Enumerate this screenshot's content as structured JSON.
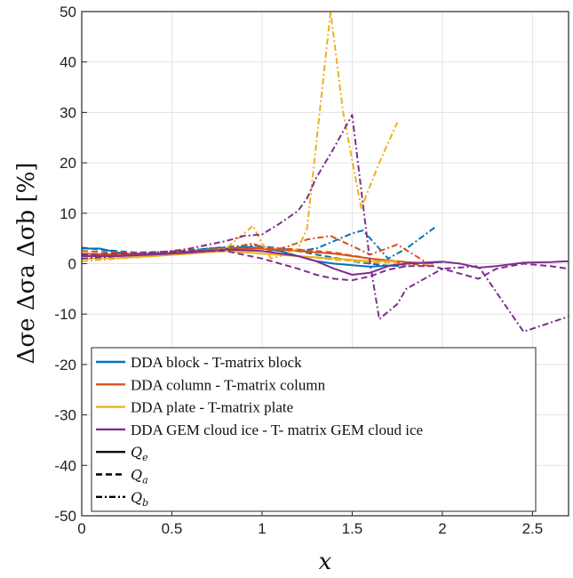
{
  "chart_data": {
    "type": "line",
    "title": "",
    "xlabel": "x",
    "ylabel": "Δσe Δσa Δσb [%]",
    "xlim": [
      0,
      2.7
    ],
    "ylim": [
      -50,
      50
    ],
    "xticks": [
      0,
      0.5,
      1,
      1.5,
      2,
      2.5
    ],
    "xtick_labels": [
      "0",
      "0.5",
      "1",
      "1.5",
      "2",
      "2.5"
    ],
    "yticks": [
      -50,
      -40,
      -30,
      -20,
      -10,
      0,
      10,
      20,
      30,
      40,
      50
    ],
    "ytick_labels": [
      "-50",
      "-40",
      "-30",
      "-20",
      "-10",
      "0",
      "10",
      "20",
      "30",
      "40",
      "50"
    ],
    "grid": true,
    "legend_position": "bottom-left",
    "colors": {
      "block": "#0072BD",
      "column": "#D95319",
      "plate": "#EDB120",
      "gem": "#7E2F8E"
    },
    "legend": {
      "entries": [
        {
          "label": "DDA  block - T-matrix  block",
          "color": "#0072BD",
          "style": "solid"
        },
        {
          "label": "DDA  column - T-matrix  column",
          "color": "#D95319",
          "style": "solid"
        },
        {
          "label": "DDA  plate - T-matrix  plate",
          "color": "#EDB120",
          "style": "solid"
        },
        {
          "label": "DDA GEM  cloud ice - T- matrix GEM cloud ice",
          "color": "#7E2F8E",
          "style": "solid"
        },
        {
          "label": "Q",
          "sub": "e",
          "color": "#000000",
          "style": "solid"
        },
        {
          "label": "Q",
          "sub": "a",
          "color": "#000000",
          "style": "dashed"
        },
        {
          "label": "Q",
          "sub": "b",
          "color": "#000000",
          "style": "dashdot"
        }
      ]
    },
    "series": [
      {
        "shape": "block",
        "quantity": "Q_e",
        "color": "#0072BD",
        "style": "solid",
        "x": [
          0,
          0.1,
          0.2,
          0.3,
          0.4,
          0.5,
          0.6,
          0.7,
          0.8,
          0.9,
          1.0,
          1.1,
          1.2,
          1.3,
          1.4,
          1.5,
          1.6,
          1.7,
          1.8,
          1.9,
          2.0
        ],
        "y": [
          3.0,
          3.0,
          2.2,
          1.8,
          2.0,
          2.1,
          2.4,
          2.8,
          3.0,
          3.2,
          3.0,
          2.5,
          1.5,
          0.5,
          0.0,
          -0.3,
          -0.6,
          -0.4,
          0.0,
          0.2,
          0.3
        ]
      },
      {
        "shape": "block",
        "quantity": "Q_a",
        "color": "#0072BD",
        "style": "dashed",
        "x": [
          0,
          0.1,
          0.2,
          0.3,
          0.4,
          0.5,
          0.6,
          0.7,
          0.8,
          0.9,
          1.0,
          1.1,
          1.2,
          1.3,
          1.4,
          1.5,
          1.6,
          1.7,
          1.8
        ],
        "y": [
          3.2,
          2.8,
          2.5,
          2.2,
          2.3,
          2.4,
          2.6,
          3.0,
          3.2,
          3.3,
          3.3,
          3.0,
          2.5,
          1.8,
          1.2,
          0.5,
          0.0,
          -0.4,
          -0.5
        ]
      },
      {
        "shape": "block",
        "quantity": "Q_b",
        "color": "#0072BD",
        "style": "dashdot",
        "x": [
          0,
          0.1,
          0.2,
          0.3,
          0.4,
          0.5,
          0.6,
          0.7,
          0.8,
          0.9,
          1.0,
          1.1,
          1.2,
          1.3,
          1.4,
          1.5,
          1.56,
          1.7,
          1.8,
          1.97
        ],
        "y": [
          1.5,
          1.6,
          1.8,
          2.0,
          2.2,
          2.5,
          2.7,
          3.0,
          3.3,
          3.6,
          3.5,
          3.0,
          2.5,
          3.0,
          4.5,
          6.0,
          6.6,
          1.0,
          3.0,
          7.5
        ]
      },
      {
        "shape": "column",
        "quantity": "Q_e",
        "color": "#D95319",
        "style": "solid",
        "x": [
          0,
          0.2,
          0.4,
          0.6,
          0.8,
          1.0,
          1.2,
          1.4,
          1.6,
          1.8,
          1.95
        ],
        "y": [
          2.0,
          1.8,
          2.0,
          2.3,
          2.8,
          3.0,
          2.5,
          2.0,
          1.0,
          0.3,
          0.0
        ]
      },
      {
        "shape": "column",
        "quantity": "Q_a",
        "color": "#D95319",
        "style": "dashed",
        "x": [
          0,
          0.2,
          0.4,
          0.6,
          0.8,
          1.0,
          1.2,
          1.4,
          1.6,
          1.8,
          1.95
        ],
        "y": [
          2.5,
          2.2,
          2.3,
          2.6,
          3.0,
          3.2,
          2.8,
          2.2,
          1.0,
          0.0,
          -0.5
        ]
      },
      {
        "shape": "column",
        "quantity": "Q_b",
        "color": "#D95319",
        "style": "dashdot",
        "x": [
          0,
          0.2,
          0.4,
          0.6,
          0.8,
          0.95,
          1.05,
          1.15,
          1.25,
          1.38,
          1.5,
          1.6,
          1.75,
          1.9
        ],
        "y": [
          1.5,
          1.8,
          2.0,
          2.5,
          3.0,
          4.0,
          2.5,
          3.5,
          4.8,
          5.5,
          3.5,
          1.8,
          3.8,
          0.5
        ]
      },
      {
        "shape": "plate",
        "quantity": "Q_e",
        "color": "#EDB120",
        "style": "solid",
        "x": [
          0,
          0.2,
          0.4,
          0.6,
          0.8,
          1.0,
          1.2,
          1.4,
          1.6,
          1.75
        ],
        "y": [
          1.0,
          1.1,
          1.5,
          2.0,
          2.5,
          2.0,
          1.5,
          1.0,
          0.5,
          0.5
        ]
      },
      {
        "shape": "plate",
        "quantity": "Q_a",
        "color": "#EDB120",
        "style": "dashed",
        "x": [
          0,
          0.2,
          0.4,
          0.6,
          0.8,
          1.0,
          1.2,
          1.4,
          1.6,
          1.75
        ],
        "y": [
          1.5,
          1.5,
          1.8,
          2.2,
          2.8,
          2.5,
          1.5,
          0.8,
          0.3,
          0.2
        ]
      },
      {
        "shape": "plate",
        "quantity": "Q_b",
        "color": "#EDB120",
        "style": "dashdot",
        "x": [
          0,
          0.2,
          0.4,
          0.6,
          0.8,
          0.95,
          1.0,
          1.05,
          1.1,
          1.2,
          1.25,
          1.38,
          1.45,
          1.55,
          1.65,
          1.75
        ],
        "y": [
          0.5,
          1.0,
          1.5,
          2.0,
          3.0,
          7.5,
          4.0,
          1.0,
          1.5,
          3.0,
          7.0,
          50,
          30,
          11,
          20,
          28
        ]
      },
      {
        "shape": "gem",
        "quantity": "Q_e",
        "color": "#7E2F8E",
        "style": "solid",
        "x": [
          0,
          0.2,
          0.4,
          0.6,
          0.8,
          1.0,
          1.2,
          1.3,
          1.4,
          1.5,
          1.6,
          1.7,
          1.8,
          1.95,
          2.0,
          2.1,
          2.2,
          2.3,
          2.45,
          2.6,
          2.7
        ],
        "y": [
          1.5,
          1.5,
          1.8,
          2.2,
          2.8,
          2.5,
          1.5,
          0.5,
          -1.0,
          -2.2,
          -1.8,
          -0.5,
          0.0,
          0.3,
          0.4,
          0.0,
          -0.8,
          -0.5,
          0.2,
          0.3,
          0.5
        ]
      },
      {
        "shape": "gem",
        "quantity": "Q_a",
        "color": "#7E2F8E",
        "style": "dashed",
        "x": [
          0,
          0.2,
          0.4,
          0.6,
          0.8,
          1.0,
          1.2,
          1.3,
          1.4,
          1.5,
          1.6,
          1.7,
          1.8,
          1.95,
          2.0,
          2.1,
          2.2,
          2.3,
          2.45,
          2.6,
          2.7
        ],
        "y": [
          1.8,
          2.0,
          2.2,
          2.5,
          2.5,
          1.0,
          -1.0,
          -2.2,
          -3.0,
          -3.3,
          -2.5,
          -1.2,
          -0.5,
          -0.5,
          -1.0,
          -2.0,
          -3.0,
          -1.0,
          0.0,
          -0.5,
          -1.0
        ]
      },
      {
        "shape": "gem",
        "quantity": "Q_b",
        "color": "#7E2F8E",
        "style": "dashdot",
        "x": [
          0,
          0.2,
          0.4,
          0.6,
          0.8,
          0.9,
          1.0,
          1.1,
          1.2,
          1.25,
          1.3,
          1.4,
          1.5,
          1.6,
          1.65,
          1.75,
          1.8,
          2.0,
          2.2,
          2.45,
          2.7
        ],
        "y": [
          1.0,
          1.5,
          2.0,
          3.0,
          4.5,
          5.5,
          5.8,
          8.0,
          10.5,
          13.0,
          17.0,
          23.0,
          29.5,
          0.0,
          -11.0,
          -8.0,
          -5.0,
          -1.0,
          -0.5,
          -13.5,
          -10.5
        ]
      }
    ]
  }
}
